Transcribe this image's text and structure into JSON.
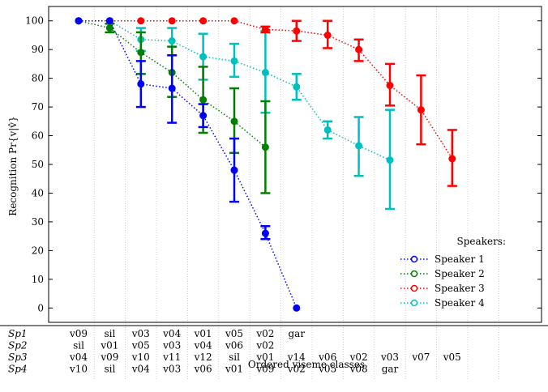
{
  "chart_data": {
    "type": "line",
    "ylabel": "Recognition Pr{v|v̂}",
    "xlabel": "Ordered viseme classes",
    "ylim": [
      -5,
      105
    ],
    "yticks": [
      0,
      10,
      20,
      30,
      40,
      50,
      60,
      70,
      80,
      90,
      100
    ],
    "legend": {
      "title": "Speakers:",
      "placement": "lower-right",
      "entries": [
        "Speaker 1",
        "Speaker 2",
        "Speaker 3",
        "Speaker 4"
      ]
    },
    "series": [
      {
        "name": "Speaker 1",
        "color": "#0000ff",
        "x": [
          1,
          2,
          3,
          4,
          5,
          6,
          7,
          8
        ],
        "y": [
          100,
          100,
          78,
          76.5,
          67,
          48,
          26,
          0
        ],
        "err_low": [
          100,
          100,
          70,
          64.5,
          63,
          37,
          24,
          0
        ],
        "err_high": [
          100,
          100,
          86,
          88,
          71,
          59,
          28.5,
          0
        ]
      },
      {
        "name": "Speaker 2",
        "color": "#008000",
        "x": [
          1,
          2,
          3,
          4,
          5,
          6,
          7
        ],
        "y": [
          100,
          97.5,
          89,
          82,
          72.5,
          65,
          56
        ],
        "err_low": [
          100,
          96,
          81.5,
          73.5,
          61,
          54,
          40
        ],
        "err_high": [
          100,
          99,
          96,
          91,
          84,
          76.5,
          72
        ]
      },
      {
        "name": "Speaker 3",
        "color": "#ff0000",
        "x": [
          1,
          2,
          3,
          4,
          5,
          6,
          7,
          8,
          9,
          10,
          11,
          12,
          13
        ],
        "y": [
          100,
          100,
          100,
          100,
          100,
          100,
          97,
          96.5,
          95,
          90,
          77.5,
          69,
          52
        ],
        "err_low": [
          100,
          100,
          100,
          100,
          100,
          100,
          96,
          93,
          90.5,
          86,
          70.5,
          57,
          42.5
        ],
        "err_high": [
          100,
          100,
          100,
          100,
          100,
          100,
          98,
          100,
          100,
          93.5,
          85,
          81,
          62
        ]
      },
      {
        "name": "Speaker 4",
        "color": "#00bfbf",
        "x": [
          1,
          2,
          3,
          4,
          5,
          6,
          7,
          8,
          9,
          10,
          11
        ],
        "y": [
          100,
          100,
          93.5,
          93,
          87.5,
          86,
          82,
          77,
          62,
          56.5,
          51.5
        ],
        "err_low": [
          100,
          100,
          89.5,
          88,
          79.5,
          80.5,
          68,
          72.5,
          59,
          46,
          34.5
        ],
        "err_high": [
          100,
          100,
          97.5,
          97.5,
          95.5,
          92,
          96.5,
          81.5,
          65,
          66.5,
          69
        ]
      }
    ],
    "table": {
      "columns_count": 13,
      "rows": [
        {
          "label": "Sp1",
          "cells": [
            "v09",
            "sil",
            "v03",
            "v04",
            "v01",
            "v05",
            "v02",
            "gar"
          ]
        },
        {
          "label": "Sp2",
          "cells": [
            "sil",
            "v01",
            "v05",
            "v03",
            "v04",
            "v06",
            "v02"
          ]
        },
        {
          "label": "Sp3",
          "cells": [
            "v04",
            "v09",
            "v10",
            "v11",
            "v12",
            "sil",
            "v01",
            "v14",
            "v06",
            "v02",
            "v03",
            "v07",
            "v05"
          ]
        },
        {
          "label": "Sp4",
          "cells": [
            "v10",
            "sil",
            "v04",
            "v03",
            "v06",
            "v01",
            "v09",
            "v02",
            "v05",
            "v08",
            "gar"
          ]
        }
      ]
    }
  }
}
